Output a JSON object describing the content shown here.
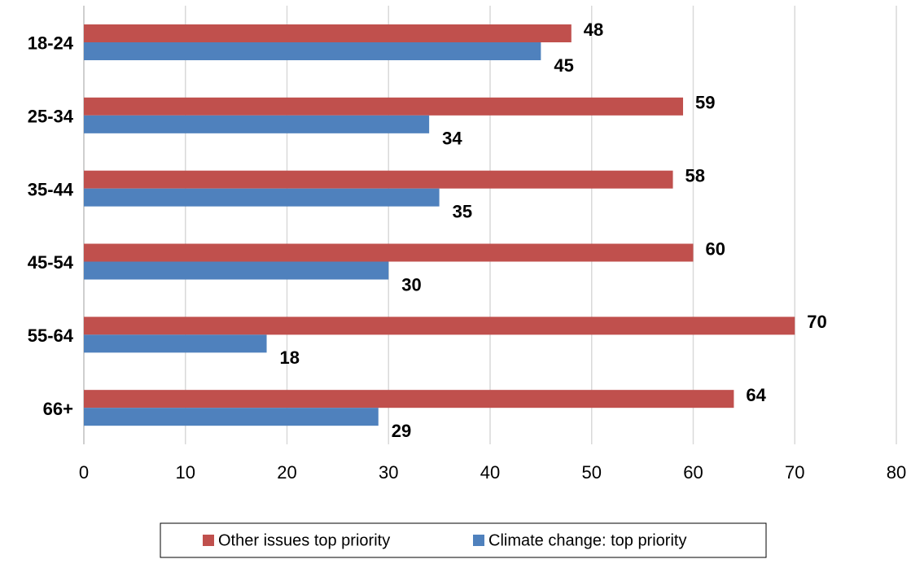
{
  "chart_data": {
    "type": "bar",
    "orientation": "horizontal",
    "categories": [
      "18-24",
      "25-34",
      "35-44",
      "45-54",
      "55-64",
      "66+"
    ],
    "series": [
      {
        "name": "Other issues top priority",
        "color": "#c0504d",
        "values": [
          48,
          59,
          58,
          60,
          70,
          64
        ]
      },
      {
        "name": "Climate change: top priority",
        "color": "#4f81bd",
        "values": [
          45,
          34,
          35,
          30,
          18,
          29
        ]
      }
    ],
    "xlim": [
      0,
      80
    ],
    "x_ticks": [
      0,
      10,
      20,
      30,
      40,
      50,
      60,
      70,
      80
    ],
    "title": "",
    "xlabel": "",
    "ylabel": "",
    "grid": "vertical",
    "legend_position": "bottom"
  }
}
